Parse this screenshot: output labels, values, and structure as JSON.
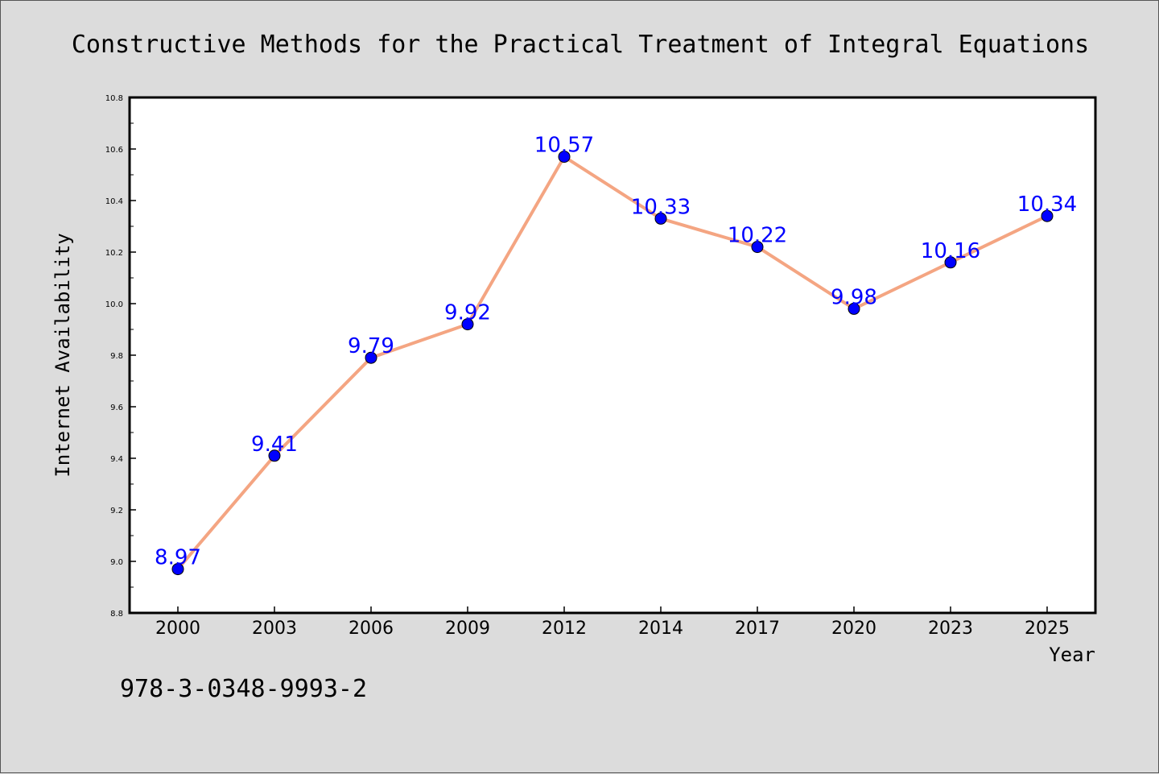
{
  "chart_data": {
    "type": "line",
    "title": "Constructive Methods for the Practical Treatment of Integral Equations",
    "xlabel": "Year",
    "ylabel": "Internet Availability",
    "categories": [
      "2000",
      "2003",
      "2006",
      "2009",
      "2012",
      "2014",
      "2017",
      "2020",
      "2023",
      "2025"
    ],
    "series": [
      {
        "values": [
          8.97,
          9.41,
          9.79,
          9.92,
          10.57,
          10.33,
          10.22,
          9.98,
          10.16,
          10.34
        ],
        "labels": [
          "8.97",
          "9.41",
          "9.79",
          "9.92",
          "10.57",
          "10.33",
          "10.22",
          "9.98",
          "10.16",
          "10.34"
        ]
      }
    ],
    "ylim": [
      8.8,
      10.8
    ],
    "yticks": [
      "8.8",
      "9.0",
      "9.2",
      "9.4",
      "9.6",
      "9.8",
      "10.0",
      "10.2",
      "10.4",
      "10.6",
      "10.8"
    ],
    "grid": false,
    "legend": "none",
    "colors": {
      "line": "#f4a582",
      "marker": "#0000ff",
      "label": "#0000ff",
      "background": "#dcdcdc",
      "plot_area": "#ffffff"
    }
  },
  "footer": {
    "isbn": "978-3-0348-9993-2"
  }
}
